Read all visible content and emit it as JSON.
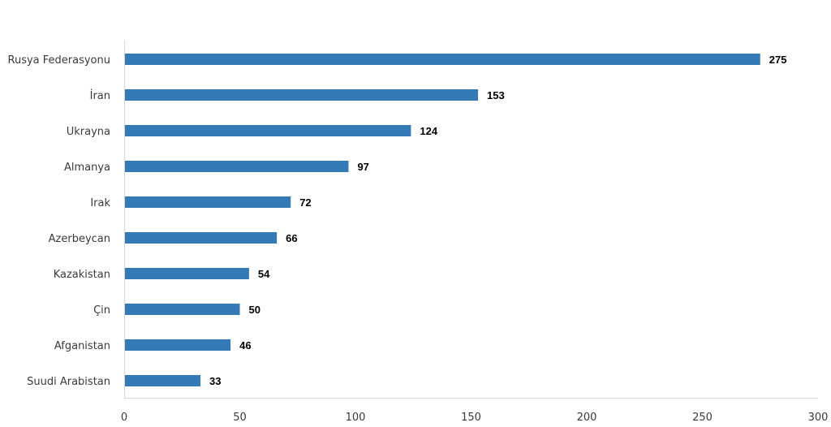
{
  "chart_data": {
    "type": "bar",
    "orientation": "horizontal",
    "categories": [
      "Rusya Federasyonu",
      "İran",
      "Ukrayna",
      "Almanya",
      "Irak",
      "Azerbeycan",
      "Kazakistan",
      "Çin",
      "Afganistan",
      "Suudi Arabistan"
    ],
    "values": [
      275,
      153,
      124,
      97,
      72,
      66,
      54,
      50,
      46,
      33
    ],
    "xlim": [
      0,
      300
    ],
    "x_ticks": [
      0,
      50,
      100,
      150,
      200,
      250,
      300
    ],
    "grid": false,
    "data_labels": true,
    "bar_color": "#337ab7"
  }
}
